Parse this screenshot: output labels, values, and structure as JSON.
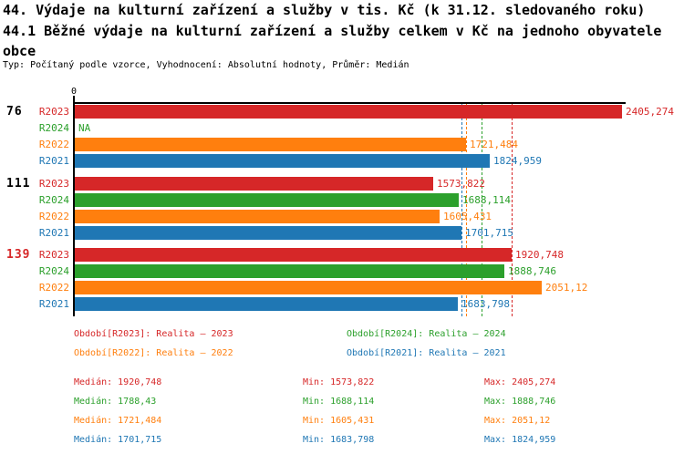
{
  "header": {
    "title_line1": "44. Výdaje na kulturní zařízení a služby v tis. Kč (k 31.12. sledovaného roku)",
    "title_line2": "44.1 Běžné výdaje na kulturní zařízení a služby celkem v Kč na jednoho obyvatele",
    "title_line3": "obce",
    "type_line": "Typ: Počítaný podle vzorce, Vyhodnocení: Absolutní hodnoty, Průměr: Medián"
  },
  "chart_data": {
    "type": "bar",
    "orientation": "horizontal",
    "x_axis": {
      "zero_label": "0",
      "grid": false
    },
    "series_colors": {
      "R2023": "#d62728",
      "R2024": "#2ca02c",
      "R2022": "#ff7f0e",
      "R2021": "#1f77b4"
    },
    "groups": [
      {
        "label": "76",
        "label_color": "#000000",
        "bars": [
          {
            "series": "R2023",
            "value": 2405.274,
            "display": "2405,274"
          },
          {
            "series": "R2024",
            "value": null,
            "display": "NA"
          },
          {
            "series": "R2022",
            "value": 1721.484,
            "display": "1721,484"
          },
          {
            "series": "R2021",
            "value": 1824.959,
            "display": "1824,959"
          }
        ]
      },
      {
        "label": "111",
        "label_color": "#000000",
        "bars": [
          {
            "series": "R2023",
            "value": 1573.822,
            "display": "1573,822"
          },
          {
            "series": "R2024",
            "value": 1688.114,
            "display": "1688,114"
          },
          {
            "series": "R2022",
            "value": 1605.431,
            "display": "1605,431"
          },
          {
            "series": "R2021",
            "value": 1701.715,
            "display": "1701,715"
          }
        ]
      },
      {
        "label": "139",
        "label_color": "#d62728",
        "bars": [
          {
            "series": "R2023",
            "value": 1920.748,
            "display": "1920,748"
          },
          {
            "series": "R2024",
            "value": 1888.746,
            "display": "1888,746"
          },
          {
            "series": "R2022",
            "value": 2051.12,
            "display": "2051,12"
          },
          {
            "series": "R2021",
            "value": 1683.798,
            "display": "1683,798"
          }
        ]
      }
    ],
    "median_lines": [
      {
        "series": "R2021",
        "value": 1701.715,
        "color": "#1f77b4"
      },
      {
        "series": "R2022",
        "value": 1721.484,
        "color": "#ff7f0e"
      },
      {
        "series": "R2024",
        "value": 1788.43,
        "color": "#2ca02c"
      },
      {
        "series": "R2023",
        "value": 1920.748,
        "color": "#d62728"
      }
    ]
  },
  "legend": {
    "items": [
      {
        "label": "Období[R2023]: Realita – 2023",
        "color": "#d62728"
      },
      {
        "label": "Období[R2024]: Realita – 2024",
        "color": "#2ca02c"
      },
      {
        "label": "Období[R2022]: Realita – 2022",
        "color": "#ff7f0e"
      },
      {
        "label": "Období[R2021]: Realita – 2021",
        "color": "#1f77b4"
      }
    ]
  },
  "stats": {
    "rows": [
      {
        "color": "#d62728",
        "median": "Medián: 1920,748",
        "min": "Min: 1573,822",
        "max": "Max: 2405,274"
      },
      {
        "color": "#2ca02c",
        "median": "Medián: 1788,43",
        "min": "Min: 1688,114",
        "max": "Max: 1888,746"
      },
      {
        "color": "#ff7f0e",
        "median": "Medián: 1721,484",
        "min": "Min: 1605,431",
        "max": "Max: 2051,12"
      },
      {
        "color": "#1f77b4",
        "median": "Medián: 1701,715",
        "min": "Min: 1683,798",
        "max": "Max: 1824,959"
      }
    ]
  }
}
